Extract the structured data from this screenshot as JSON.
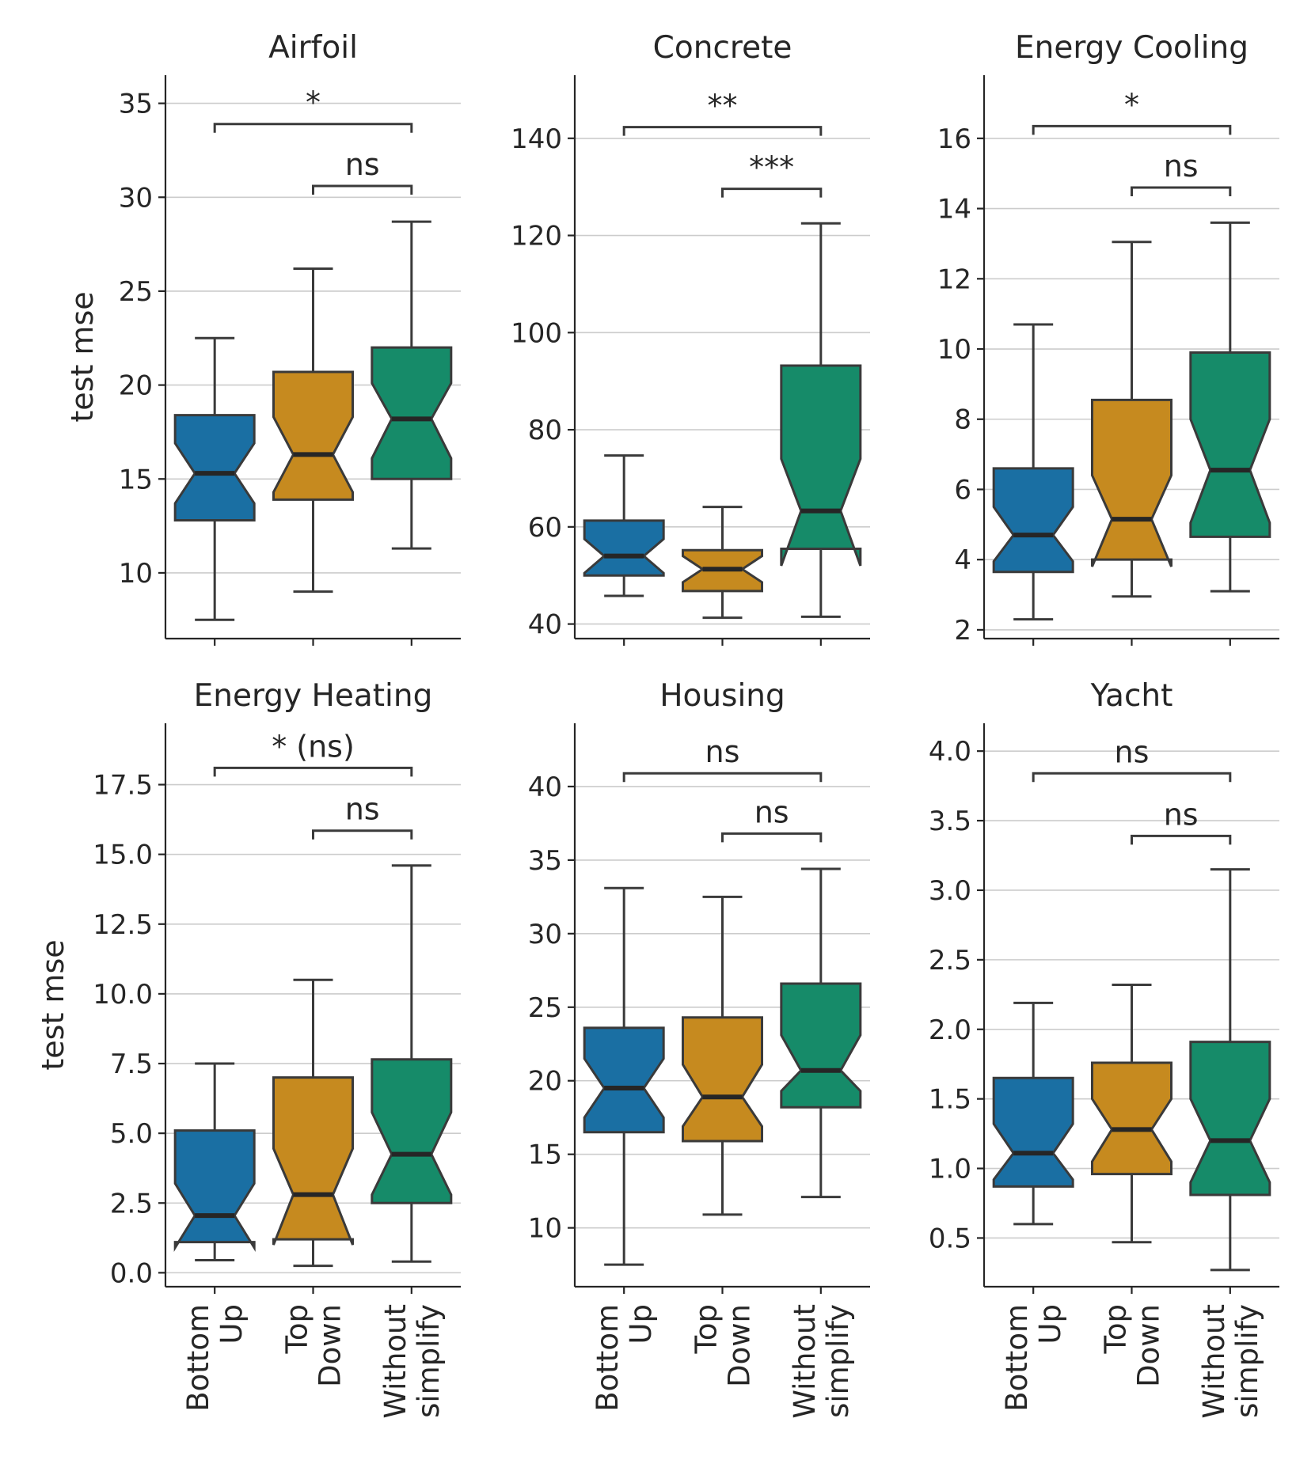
{
  "figure": {
    "ylabel": "test mse",
    "colors": [
      "#1a6fa3",
      "#c68a1f",
      "#168b69"
    ]
  },
  "chart_data": [
    {
      "type": "boxplot",
      "title": "Airfoil",
      "categories": [
        [
          "Bottom",
          "Up"
        ],
        [
          "Top",
          "Down"
        ],
        [
          "Without",
          "simplify"
        ]
      ],
      "ylabel": "test mse",
      "ylim": [
        6.5,
        36.5
      ],
      "yticks": [
        "10",
        "15",
        "20",
        "25",
        "30",
        "35"
      ],
      "ytick_values": [
        10,
        15,
        20,
        25,
        30,
        35
      ],
      "boxes": [
        {
          "whislo": 7.5,
          "q1": 12.8,
          "notch_lo": 13.7,
          "median": 15.3,
          "notch_hi": 16.9,
          "q3": 18.4,
          "whishi": 22.5
        },
        {
          "whislo": 9.0,
          "q1": 13.9,
          "notch_lo": 14.3,
          "median": 16.3,
          "notch_hi": 18.3,
          "q3": 20.7,
          "whishi": 26.2
        },
        {
          "whislo": 11.3,
          "q1": 15.0,
          "notch_lo": 16.1,
          "median": 18.2,
          "notch_hi": 20.1,
          "q3": 22.0,
          "whishi": 28.7
        }
      ],
      "significance": [
        {
          "from": 0,
          "to": 2,
          "label": "*",
          "y": 33.9
        },
        {
          "from": 1,
          "to": 2,
          "label": "ns",
          "y": 30.6
        }
      ]
    },
    {
      "type": "boxplot",
      "title": "Concrete",
      "categories": [
        [
          "Bottom",
          "Up"
        ],
        [
          "Top",
          "Down"
        ],
        [
          "Without",
          "simplify"
        ]
      ],
      "ylabel": "",
      "ylim": [
        37,
        153
      ],
      "yticks": [
        "40",
        "60",
        "80",
        "100",
        "120",
        "140"
      ],
      "ytick_values": [
        40,
        60,
        80,
        100,
        120,
        140
      ],
      "boxes": [
        {
          "whislo": 45.8,
          "q1": 50.0,
          "notch_lo": 50.5,
          "median": 54.0,
          "notch_hi": 57.5,
          "q3": 61.3,
          "whishi": 74.7
        },
        {
          "whislo": 41.3,
          "q1": 46.8,
          "notch_lo": 48.6,
          "median": 51.3,
          "notch_hi": 54.0,
          "q3": 55.2,
          "whishi": 64.1
        },
        {
          "whislo": 41.5,
          "q1": 55.5,
          "notch_lo": 52.0,
          "median": 63.3,
          "notch_hi": 74.0,
          "q3": 93.2,
          "whishi": 122.5
        }
      ],
      "significance": [
        {
          "from": 0,
          "to": 2,
          "label": "**",
          "y": 142.3
        },
        {
          "from": 1,
          "to": 2,
          "label": "***",
          "y": 129.6
        }
      ]
    },
    {
      "type": "boxplot",
      "title": "Energy Cooling",
      "categories": [
        [
          "Bottom",
          "Up"
        ],
        [
          "Top",
          "Down"
        ],
        [
          "Without",
          "simplify"
        ]
      ],
      "ylabel": "",
      "ylim": [
        1.75,
        17.8
      ],
      "yticks": [
        "2",
        "4",
        "6",
        "8",
        "10",
        "12",
        "14",
        "16"
      ],
      "ytick_values": [
        2,
        4,
        6,
        8,
        10,
        12,
        14,
        16
      ],
      "boxes": [
        {
          "whislo": 2.3,
          "q1": 3.65,
          "notch_lo": 3.95,
          "median": 4.7,
          "notch_hi": 5.5,
          "q3": 6.6,
          "whishi": 10.7
        },
        {
          "whislo": 2.95,
          "q1": 4.0,
          "notch_lo": 3.8,
          "median": 5.15,
          "notch_hi": 6.4,
          "q3": 8.55,
          "whishi": 13.05
        },
        {
          "whislo": 3.1,
          "q1": 4.65,
          "notch_lo": 5.05,
          "median": 6.55,
          "notch_hi": 8.0,
          "q3": 9.9,
          "whishi": 13.6
        }
      ],
      "significance": [
        {
          "from": 0,
          "to": 2,
          "label": "*",
          "y": 16.35
        },
        {
          "from": 1,
          "to": 2,
          "label": "ns",
          "y": 14.6
        }
      ]
    },
    {
      "type": "boxplot",
      "title": "Energy Heating",
      "categories": [
        [
          "Bottom",
          "Up"
        ],
        [
          "Top",
          "Down"
        ],
        [
          "Without",
          "simplify"
        ]
      ],
      "ylabel": "test mse",
      "ylim": [
        -0.5,
        19.7
      ],
      "yticks": [
        "0.0",
        "2.5",
        "5.0",
        "7.5",
        "10.0",
        "12.5",
        "15.0",
        "17.5"
      ],
      "ytick_values": [
        0,
        2.5,
        5,
        7.5,
        10,
        12.5,
        15,
        17.5
      ],
      "boxes": [
        {
          "whislo": 0.45,
          "q1": 1.1,
          "notch_lo": 0.9,
          "median": 2.05,
          "notch_hi": 3.2,
          "q3": 5.1,
          "whishi": 7.5
        },
        {
          "whislo": 0.25,
          "q1": 1.2,
          "notch_lo": 1.0,
          "median": 2.8,
          "notch_hi": 4.45,
          "q3": 7.0,
          "whishi": 10.5
        },
        {
          "whislo": 0.4,
          "q1": 2.5,
          "notch_lo": 2.8,
          "median": 4.25,
          "notch_hi": 5.75,
          "q3": 7.65,
          "whishi": 14.6
        }
      ],
      "significance": [
        {
          "from": 0,
          "to": 2,
          "label": "* (ns)",
          "y": 18.1
        },
        {
          "from": 1,
          "to": 2,
          "label": "ns",
          "y": 15.85
        }
      ]
    },
    {
      "type": "boxplot",
      "title": "Housing",
      "categories": [
        [
          "Bottom",
          "Up"
        ],
        [
          "Top",
          "Down"
        ],
        [
          "Without",
          "simplify"
        ]
      ],
      "ylabel": "",
      "ylim": [
        6,
        44.3
      ],
      "yticks": [
        "10",
        "15",
        "20",
        "25",
        "30",
        "35",
        "40"
      ],
      "ytick_values": [
        10,
        15,
        20,
        25,
        30,
        35,
        40
      ],
      "boxes": [
        {
          "whislo": 7.5,
          "q1": 16.5,
          "notch_lo": 17.5,
          "median": 19.5,
          "notch_hi": 21.5,
          "q3": 23.6,
          "whishi": 33.1
        },
        {
          "whislo": 10.9,
          "q1": 15.9,
          "notch_lo": 16.9,
          "median": 18.9,
          "notch_hi": 21.1,
          "q3": 24.3,
          "whishi": 32.5
        },
        {
          "whislo": 12.1,
          "q1": 18.2,
          "notch_lo": 19.3,
          "median": 20.7,
          "notch_hi": 23.1,
          "q3": 26.6,
          "whishi": 34.4
        }
      ],
      "significance": [
        {
          "from": 0,
          "to": 2,
          "label": "ns",
          "y": 40.9
        },
        {
          "from": 1,
          "to": 2,
          "label": "ns",
          "y": 36.8
        }
      ]
    },
    {
      "type": "boxplot",
      "title": "Yacht",
      "categories": [
        [
          "Bottom",
          "Up"
        ],
        [
          "Top",
          "Down"
        ],
        [
          "Without",
          "simplify"
        ]
      ],
      "ylabel": "",
      "ylim": [
        0.15,
        4.2
      ],
      "yticks": [
        "0.5",
        "1.0",
        "1.5",
        "2.0",
        "2.5",
        "3.0",
        "3.5",
        "4.0"
      ],
      "ytick_values": [
        0.5,
        1.0,
        1.5,
        2.0,
        2.5,
        3.0,
        3.5,
        4.0
      ],
      "boxes": [
        {
          "whislo": 0.6,
          "q1": 0.87,
          "notch_lo": 0.92,
          "median": 1.11,
          "notch_hi": 1.32,
          "q3": 1.65,
          "whishi": 2.19
        },
        {
          "whislo": 0.47,
          "q1": 0.96,
          "notch_lo": 1.05,
          "median": 1.28,
          "notch_hi": 1.5,
          "q3": 1.76,
          "whishi": 2.32
        },
        {
          "whislo": 0.27,
          "q1": 0.81,
          "notch_lo": 0.9,
          "median": 1.2,
          "notch_hi": 1.5,
          "q3": 1.91,
          "whishi": 3.15
        }
      ],
      "significance": [
        {
          "from": 0,
          "to": 2,
          "label": "ns",
          "y": 3.84
        },
        {
          "from": 1,
          "to": 2,
          "label": "ns",
          "y": 3.39
        }
      ]
    }
  ]
}
